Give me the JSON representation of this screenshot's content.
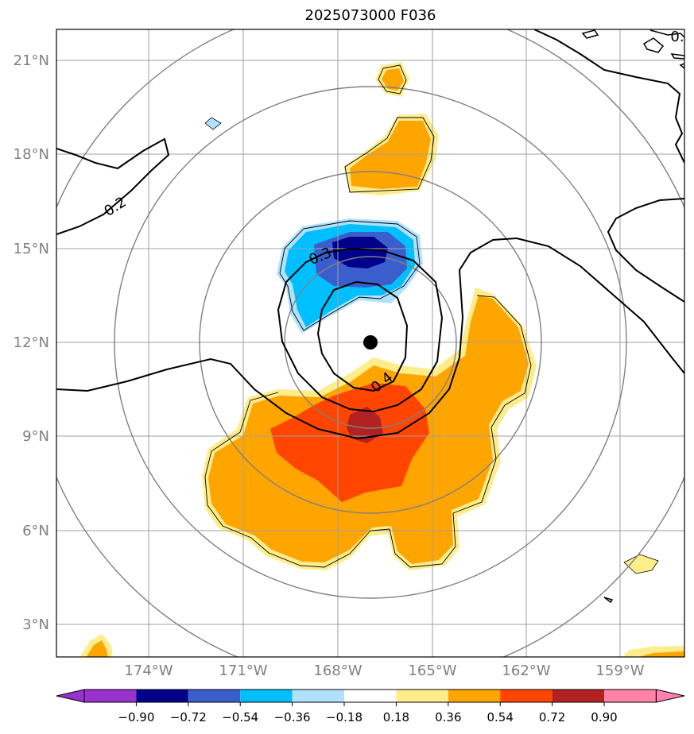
{
  "title": "2025073000 F036",
  "map": {
    "lat_labels": [
      "3°N",
      "6°N",
      "9°N",
      "12°N",
      "15°N",
      "18°N",
      "21°N"
    ],
    "lon_labels": [
      "174°W",
      "171°W",
      "168°W",
      "165°W",
      "162°W",
      "159°W"
    ],
    "contour_labels": [
      "0.2",
      "0.3",
      "0.4",
      "0."
    ],
    "center_marker": "storm-center",
    "range_rings": 4
  },
  "colorbar": {
    "labels": [
      "−0.90",
      "−0.72",
      "−0.54",
      "−0.36",
      "−0.18",
      "0.18",
      "0.36",
      "0.54",
      "0.72",
      "0.90"
    ],
    "colors": [
      "#9932cc",
      "#00008b",
      "#3a5fcd",
      "#00bfff",
      "#b0e2ff",
      "#ffffff",
      "#ffec8b",
      "#ffa500",
      "#ff4500",
      "#b22222",
      "#ff82ab"
    ]
  },
  "colors": {
    "grid": "#a0a0a0",
    "ring": "#808080",
    "contour": "#000000"
  }
}
